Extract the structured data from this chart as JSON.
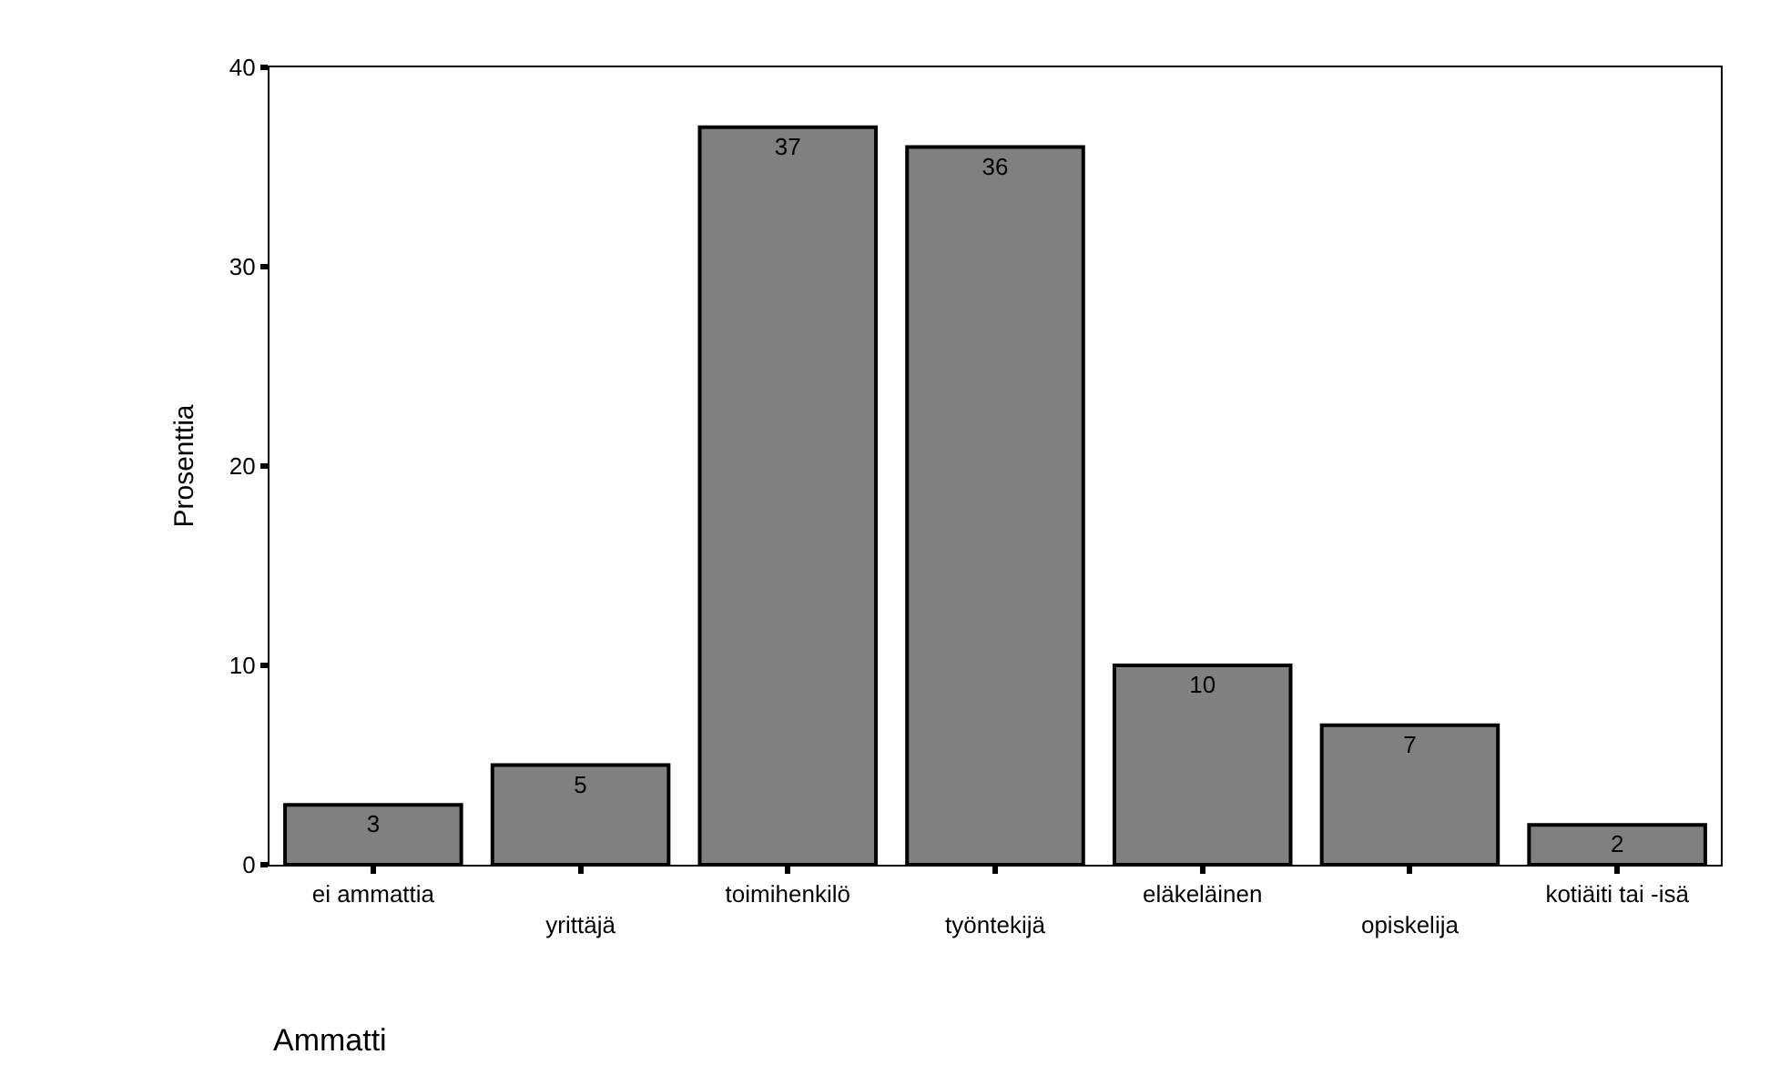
{
  "chart_data": {
    "type": "bar",
    "annotations": [
      "Ammatti"
    ],
    "ylabel": "Prosenttia",
    "categories": [
      "ei ammattia",
      "yrittäjä",
      "toimihenkilö",
      "työntekijä",
      "eläkeläinen",
      "opiskelija",
      "kotiäiti tai -isä"
    ],
    "values": [
      3,
      5,
      37,
      36,
      10,
      7,
      2
    ],
    "color": "#808080",
    "data_labels": true,
    "ylim": [
      0,
      40
    ],
    "yticks": [
      0,
      10,
      20,
      30,
      40
    ]
  }
}
